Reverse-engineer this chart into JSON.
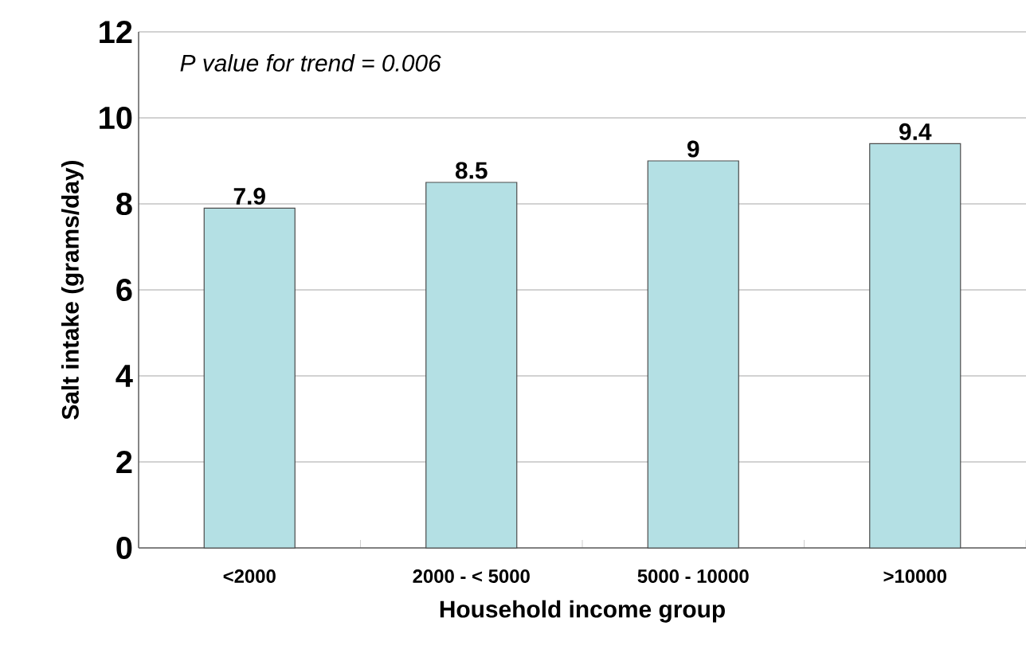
{
  "chart_data": {
    "type": "bar",
    "xlabel": "Household income group",
    "ylabel": "Salt intake (grams/day)",
    "categories": [
      "<2000",
      "2000 - < 5000",
      "5000 - 10000",
      ">10000"
    ],
    "values": [
      7.9,
      8.5,
      9,
      9.4
    ],
    "color": "#b4e0e4",
    "ylim": [
      0,
      12
    ],
    "yticks": [
      0,
      2,
      4,
      6,
      8,
      10,
      12
    ],
    "grid": "y",
    "data_labels": true,
    "annotations": [
      "P value for trend = 0.006"
    ]
  }
}
